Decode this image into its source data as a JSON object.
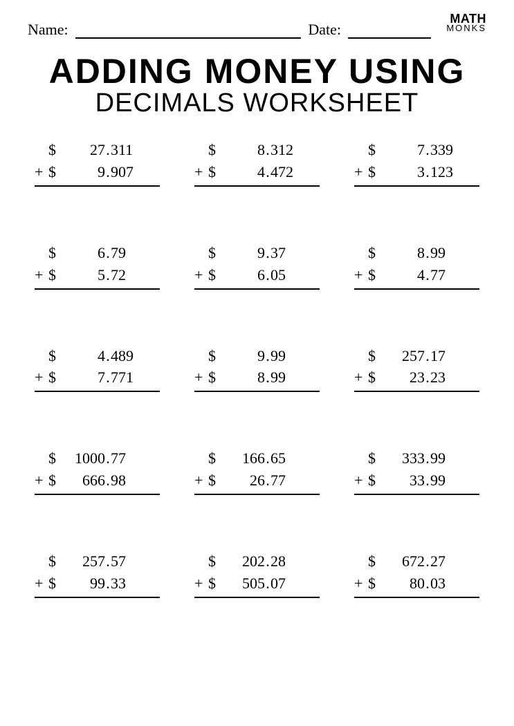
{
  "header": {
    "name_label": "Name:",
    "date_label": "Date:"
  },
  "logo": {
    "line1": "MATH",
    "line2": "MONKS"
  },
  "title": {
    "line1": "ADDING MONEY USING",
    "line2": "DECIMALS WORKSHEET"
  },
  "style": {
    "background_color": "#ffffff",
    "text_color": "#000000",
    "rule_color": "#000000",
    "title_line1_fontsize": 50,
    "title_line2_fontsize": 38,
    "body_fontsize": 22,
    "label_fontsize": 22,
    "grid_columns": 3,
    "grid_rows": 5,
    "row_gap": 80,
    "col_gap": 50
  },
  "currency_symbol": "$",
  "operator_symbol": "+",
  "problems": [
    {
      "a_int": "27",
      "a_dec": "311",
      "b_int": "9",
      "b_dec": "907"
    },
    {
      "a_int": "8",
      "a_dec": "312",
      "b_int": "4",
      "b_dec": "472"
    },
    {
      "a_int": "7",
      "a_dec": "339",
      "b_int": "3",
      "b_dec": "123"
    },
    {
      "a_int": "6",
      "a_dec": "79",
      "b_int": "5",
      "b_dec": "72"
    },
    {
      "a_int": "9",
      "a_dec": "37",
      "b_int": "6",
      "b_dec": "05"
    },
    {
      "a_int": "8",
      "a_dec": "99",
      "b_int": "4",
      "b_dec": "77"
    },
    {
      "a_int": "4",
      "a_dec": "489",
      "b_int": "7",
      "b_dec": "771"
    },
    {
      "a_int": "9",
      "a_dec": "99",
      "b_int": "8",
      "b_dec": "99"
    },
    {
      "a_int": "257",
      "a_dec": "17",
      "b_int": "23",
      "b_dec": "23"
    },
    {
      "a_int": "1000",
      "a_dec": "77",
      "b_int": "666",
      "b_dec": "98"
    },
    {
      "a_int": "166",
      "a_dec": "65",
      "b_int": "26",
      "b_dec": "77"
    },
    {
      "a_int": "333",
      "a_dec": "99",
      "b_int": "33",
      "b_dec": "99"
    },
    {
      "a_int": "257",
      "a_dec": "57",
      "b_int": "99",
      "b_dec": "33"
    },
    {
      "a_int": "202",
      "a_dec": "28",
      "b_int": "505",
      "b_dec": "07"
    },
    {
      "a_int": "672",
      "a_dec": "27",
      "b_int": "80",
      "b_dec": "03"
    }
  ]
}
